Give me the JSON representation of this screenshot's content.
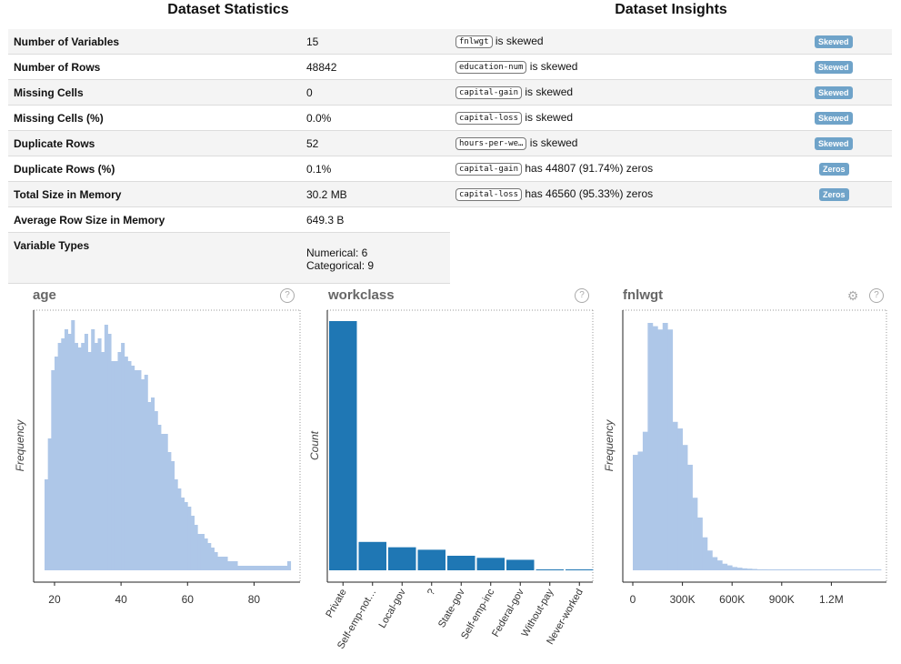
{
  "stats": {
    "title": "Dataset Statistics",
    "rows": [
      {
        "key": "Number of Variables",
        "value": "15"
      },
      {
        "key": "Number of Rows",
        "value": "48842"
      },
      {
        "key": "Missing Cells",
        "value": "0"
      },
      {
        "key": "Missing Cells (%)",
        "value": "0.0%"
      },
      {
        "key": "Duplicate Rows",
        "value": "52"
      },
      {
        "key": "Duplicate Rows (%)",
        "value": "0.1%"
      },
      {
        "key": "Total Size in Memory",
        "value": "30.2 MB"
      },
      {
        "key": "Average Row Size in Memory",
        "value": "649.3 B"
      }
    ],
    "variable_types": {
      "key": "Variable Types",
      "numerical": "Numerical: 6",
      "categorical": "Categorical: 9"
    }
  },
  "insights": {
    "title": "Dataset Insights",
    "rows": [
      {
        "col": "fnlwgt",
        "text": "is skewed",
        "badge": "Skewed"
      },
      {
        "col": "education-num",
        "text": "is skewed",
        "badge": "Skewed"
      },
      {
        "col": "capital-gain",
        "text": "is skewed",
        "badge": "Skewed"
      },
      {
        "col": "capital-loss",
        "text": "is skewed",
        "badge": "Skewed"
      },
      {
        "col": "hours-per-we…",
        "text": "is skewed",
        "badge": "Skewed"
      },
      {
        "col": "capital-gain",
        "text": "has 44807 (91.74%) zeros",
        "badge": "Zeros"
      },
      {
        "col": "capital-loss",
        "text": "has 46560 (95.33%) zeros",
        "badge": "Zeros"
      }
    ]
  },
  "charts": {
    "age_title": "age",
    "workclass_title": "workclass",
    "fnlwgt_title": "fnlwgt",
    "help_glyph": "?",
    "gear_glyph": "⚙"
  },
  "colors": {
    "light_bar": "#aec7e8",
    "dark_bar": "#1f77b4",
    "badge": "#6fa3c9"
  },
  "chart_data": [
    {
      "type": "bar",
      "title": "age",
      "ylabel": "Frequency",
      "xlim": [
        17,
        90
      ],
      "xticks": [
        "20",
        "40",
        "60",
        "80"
      ],
      "x": [
        17,
        18,
        19,
        20,
        21,
        22,
        23,
        24,
        25,
        26,
        27,
        28,
        29,
        30,
        31,
        32,
        33,
        34,
        35,
        36,
        37,
        38,
        39,
        40,
        41,
        42,
        43,
        44,
        45,
        46,
        47,
        48,
        49,
        50,
        51,
        52,
        53,
        54,
        55,
        56,
        57,
        58,
        59,
        60,
        61,
        62,
        63,
        64,
        65,
        66,
        67,
        68,
        69,
        70,
        71,
        72,
        73,
        74,
        75,
        76,
        77,
        78,
        79,
        80,
        81,
        82,
        83,
        84,
        85,
        86,
        87,
        88,
        89,
        90
      ],
      "values": [
        20,
        29,
        44,
        47,
        50,
        51,
        53,
        52,
        55,
        50,
        49,
        50,
        52,
        48,
        53,
        50,
        51,
        48,
        54,
        52,
        46,
        46,
        48,
        50,
        47,
        46,
        45,
        44,
        44,
        42,
        43,
        37,
        38,
        35,
        32,
        30,
        30,
        26,
        24,
        20,
        18,
        16,
        15,
        14,
        12,
        10,
        8,
        8,
        7,
        6,
        5,
        4,
        3,
        3,
        3,
        2,
        2,
        2,
        1,
        1,
        1,
        1,
        1,
        1,
        1,
        1,
        1,
        1,
        1,
        1,
        1,
        1,
        1,
        2
      ]
    },
    {
      "type": "bar",
      "title": "workclass",
      "ylabel": "Count",
      "categories": [
        "Private",
        "Self-emp-not-inc",
        "Local-gov",
        "?",
        "State-gov",
        "Self-emp-inc",
        "Federal-gov",
        "Without-pay",
        "Never-worked"
      ],
      "tick_labels": [
        "Private",
        "Self-emp-not…",
        "Local-gov",
        "?",
        "State-gov",
        "Self-emp-inc",
        "Federal-gov",
        "Without-pay",
        "Never-worked"
      ],
      "values": [
        33906,
        3862,
        3136,
        2799,
        1981,
        1695,
        1432,
        21,
        10
      ]
    },
    {
      "type": "bar",
      "title": "fnlwgt",
      "ylabel": "Frequency",
      "xticks": [
        "0",
        "300K",
        "600K",
        "900K",
        "1.2M"
      ],
      "xlim": [
        0,
        1500000
      ],
      "bin_width": 30000,
      "values": [
        35,
        36,
        42,
        75,
        74,
        73,
        75,
        73,
        45,
        43,
        38,
        32,
        22,
        16,
        10,
        6,
        4,
        3,
        2,
        1.5,
        1,
        0.8,
        0.6,
        0.5,
        0.4,
        0.3,
        0.3,
        0.2,
        0.2,
        0.2,
        0.2,
        0.2,
        0.2,
        0.2,
        0.2,
        0.2,
        0.1,
        0.1,
        0.1,
        0.1,
        0.1,
        0.1,
        0.1,
        0.1,
        0.1,
        0.1,
        0.1,
        0.1,
        0.1,
        0.1
      ]
    }
  ]
}
